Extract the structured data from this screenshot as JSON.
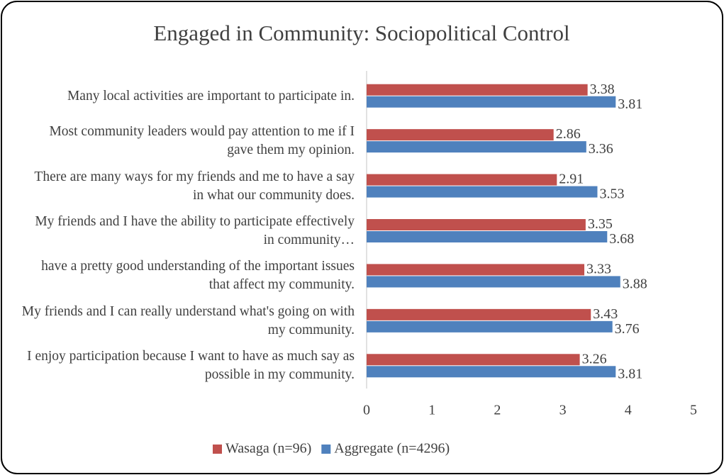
{
  "chart_data": {
    "type": "bar",
    "orientation": "horizontal",
    "title": "Engaged in Community: Sociopolitical Control",
    "categories": [
      "Many local activities are important to participate in.",
      "Most community leaders would pay attention to me if I gave them my opinion.",
      "There are many ways for my friends and me to have a say in what our community does.",
      "My friends and I have the ability to participate effectively in community…",
      "have a pretty good understanding of the important issues that affect my community.",
      "My friends and I can really understand what's going on with my community.",
      "I enjoy participation because I want to have as much say as possible in my community."
    ],
    "series": [
      {
        "name": "Wasaga (n=96)",
        "color": "#c0504d",
        "values": [
          3.38,
          2.86,
          2.91,
          3.35,
          3.33,
          3.43,
          3.26
        ]
      },
      {
        "name": "Aggregate (n=4296)",
        "color": "#4f81bd",
        "values": [
          3.81,
          3.36,
          3.53,
          3.68,
          3.88,
          3.76,
          3.81
        ]
      }
    ],
    "xlim": [
      0,
      5
    ],
    "xticks": [
      0,
      1,
      2,
      3,
      4,
      5
    ],
    "legend": "bottom"
  }
}
